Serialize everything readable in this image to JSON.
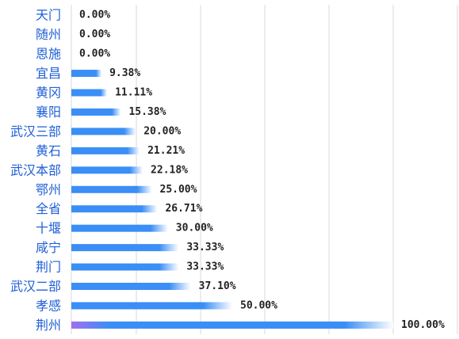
{
  "chart_data": {
    "type": "bar",
    "orientation": "horizontal",
    "categories": [
      "天门",
      "随州",
      "恩施",
      "宜昌",
      "黄冈",
      "襄阳",
      "武汉三部",
      "黄石",
      "武汉本部",
      "鄂州",
      "全省",
      "十堰",
      "咸宁",
      "荆门",
      "武汉二部",
      "孝感",
      "荆州"
    ],
    "values": [
      0.0,
      0.0,
      0.0,
      9.38,
      11.11,
      15.38,
      20.0,
      21.21,
      22.18,
      25.0,
      26.71,
      30.0,
      33.33,
      33.33,
      37.1,
      50.0,
      100.0
    ],
    "value_labels": [
      "0.00%",
      "0.00%",
      "0.00%",
      "9.38%",
      "11.11%",
      "15.38%",
      "20.00%",
      "21.21%",
      "22.18%",
      "25.00%",
      "26.71%",
      "30.00%",
      "33.33%",
      "33.33%",
      "37.10%",
      "50.00%",
      "100.00%"
    ],
    "xlim": [
      0,
      100
    ],
    "grid": true,
    "legend": "none",
    "colors": {
      "bar_start": "#a070f0",
      "bar_mid": "#3a8ef6",
      "bar_end": "#ffffff",
      "category_text": "#1f5fd6",
      "value_text": "#222222",
      "grid": "#d9d9d9"
    }
  }
}
